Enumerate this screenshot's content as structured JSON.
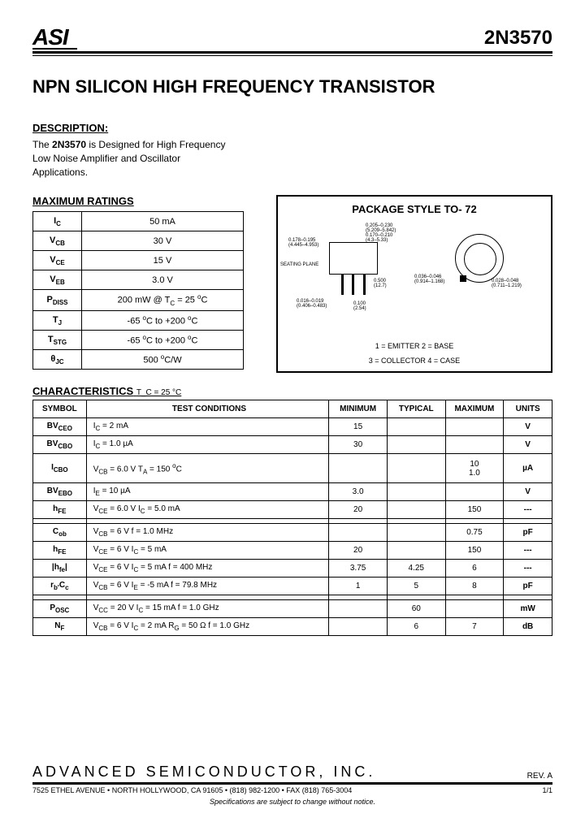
{
  "header": {
    "logo": "ASI",
    "part": "2N3570"
  },
  "title": "NPN SILICON HIGH FREQUENCY TRANSISTOR",
  "description": {
    "label": "DESCRIPTION:",
    "text_prefix": "The ",
    "part_bold": "2N3570",
    "text_suffix": " is Designed for High Frequency Low Noise Amplifier and Oscillator Applications."
  },
  "ratings": {
    "label": "MAXIMUM RATINGS",
    "rows": [
      {
        "sym": "I",
        "sub": "C",
        "val": "50 mA"
      },
      {
        "sym": "V",
        "sub": "CB",
        "val": "30 V"
      },
      {
        "sym": "V",
        "sub": "CE",
        "val": "15 V"
      },
      {
        "sym": "V",
        "sub": "EB",
        "val": "3.0 V"
      },
      {
        "sym": "P",
        "sub": "DISS",
        "val": "200 mW @ T_C = 25 °C"
      },
      {
        "sym": "T",
        "sub": "J",
        "val": "-65 °C to +200 °C"
      },
      {
        "sym": "T",
        "sub": "STG",
        "val": "-65 °C to +200 °C"
      },
      {
        "sym": "θ",
        "sub": "JC",
        "val": "500 °C/W"
      }
    ]
  },
  "package": {
    "title": "PACKAGE  STYLE  TO- 72",
    "dims": {
      "d1": "0.205–0.230",
      "d1b": "(5.209–5.842)",
      "d2": "0.170–0.210",
      "d2b": "(4.3–5.33)",
      "d3": "0.178–0.195",
      "d3b": "(4.445–4.953)",
      "d4": "0.500",
      "d4b": "(12.7)",
      "d5": "0.016–0.019",
      "d5b": "(0.406–0.483)",
      "d6": "0.100",
      "d6b": "(2.54)",
      "d7": "0.036–0.046",
      "d7b": "(0.914–1.168)",
      "d8": "0.028–0.048",
      "d8b": "(0.711–1.219)",
      "sp": "SEATING PLANE"
    },
    "legend1": "1 = EMITTER      2 = BASE",
    "legend2": "3 = COLLECTOR   4 = CASE"
  },
  "characteristics": {
    "label": "CHARACTERISTICS",
    "sub": "  T_C = 25 °C",
    "headers": [
      "SYMBOL",
      "TEST CONDITIONS",
      "MINIMUM",
      "TYPICAL",
      "MAXIMUM",
      "UNITS"
    ],
    "rows": [
      {
        "sym": "BV",
        "sub": "CEO",
        "cond": "I_C = 2 mA",
        "min": "15",
        "typ": "",
        "max": "",
        "units": "V"
      },
      {
        "sym": "BV",
        "sub": "CBO",
        "cond": "I_C = 1.0 µA",
        "min": "30",
        "typ": "",
        "max": "",
        "units": "V"
      },
      {
        "sym": "I",
        "sub": "CBO",
        "cond": "V_CB = 6.0 V                                      T_A = 150 °C",
        "min": "",
        "typ": "",
        "max": "10\n1.0",
        "units": "µA"
      },
      {
        "sym": "BV",
        "sub": "EBO",
        "cond": "I_E = 10 µA",
        "min": "3.0",
        "typ": "",
        "max": "",
        "units": "V"
      },
      {
        "sym": "h",
        "sub": "FE",
        "cond": "V_CE = 6.0 V          I_C = 5.0 mA",
        "min": "20",
        "typ": "",
        "max": "150",
        "units": "---"
      }
    ],
    "rows2": [
      {
        "sym": "C",
        "sub": "ob",
        "cond": "V_CB = 6 V                          f = 1.0 MHz",
        "min": "",
        "typ": "",
        "max": "0.75",
        "units": "pF"
      },
      {
        "sym": "h",
        "sub": "FE",
        "cond": "V_CE = 6 V        I_C = 5 mA",
        "min": "20",
        "typ": "",
        "max": "150",
        "units": "---"
      },
      {
        "sym": "|h",
        "sub": "fe",
        "sym2": "|",
        "cond": "V_CE = 6 V        I_C = 5 mA        f = 400 MHz",
        "min": "3.75",
        "typ": "4.25",
        "max": "6",
        "units": "---"
      },
      {
        "sym": "r",
        "sub": "b'",
        "sym2": "C",
        "sub2": "c",
        "cond": "V_CB = 6 V        I_E = -5 mA        f = 79.8 MHz",
        "min": "1",
        "typ": "5",
        "max": "8",
        "units": "pF"
      }
    ],
    "rows3": [
      {
        "sym": "P",
        "sub": "OSC",
        "cond": "V_CC = 20 V     I_C = 15 mA        f = 1.0 GHz",
        "min": "",
        "typ": "60",
        "max": "",
        "units": "mW"
      },
      {
        "sym": "N",
        "sub": "F",
        "cond": "V_CB = 6 V    I_C = 2 mA    R_G = 50 Ω    f = 1.0 GHz",
        "min": "",
        "typ": "6",
        "max": "7",
        "units": "dB"
      }
    ]
  },
  "footer": {
    "company": "ADVANCED SEMICONDUCTOR, INC.",
    "rev": "REV. A",
    "address": "7525 ETHEL AVENUE • NORTH HOLLYWOOD, CA 91605 • (818) 982-1200 • FAX (818) 765-3004",
    "page": "1/1",
    "note": "Specifications are subject to change without notice."
  }
}
